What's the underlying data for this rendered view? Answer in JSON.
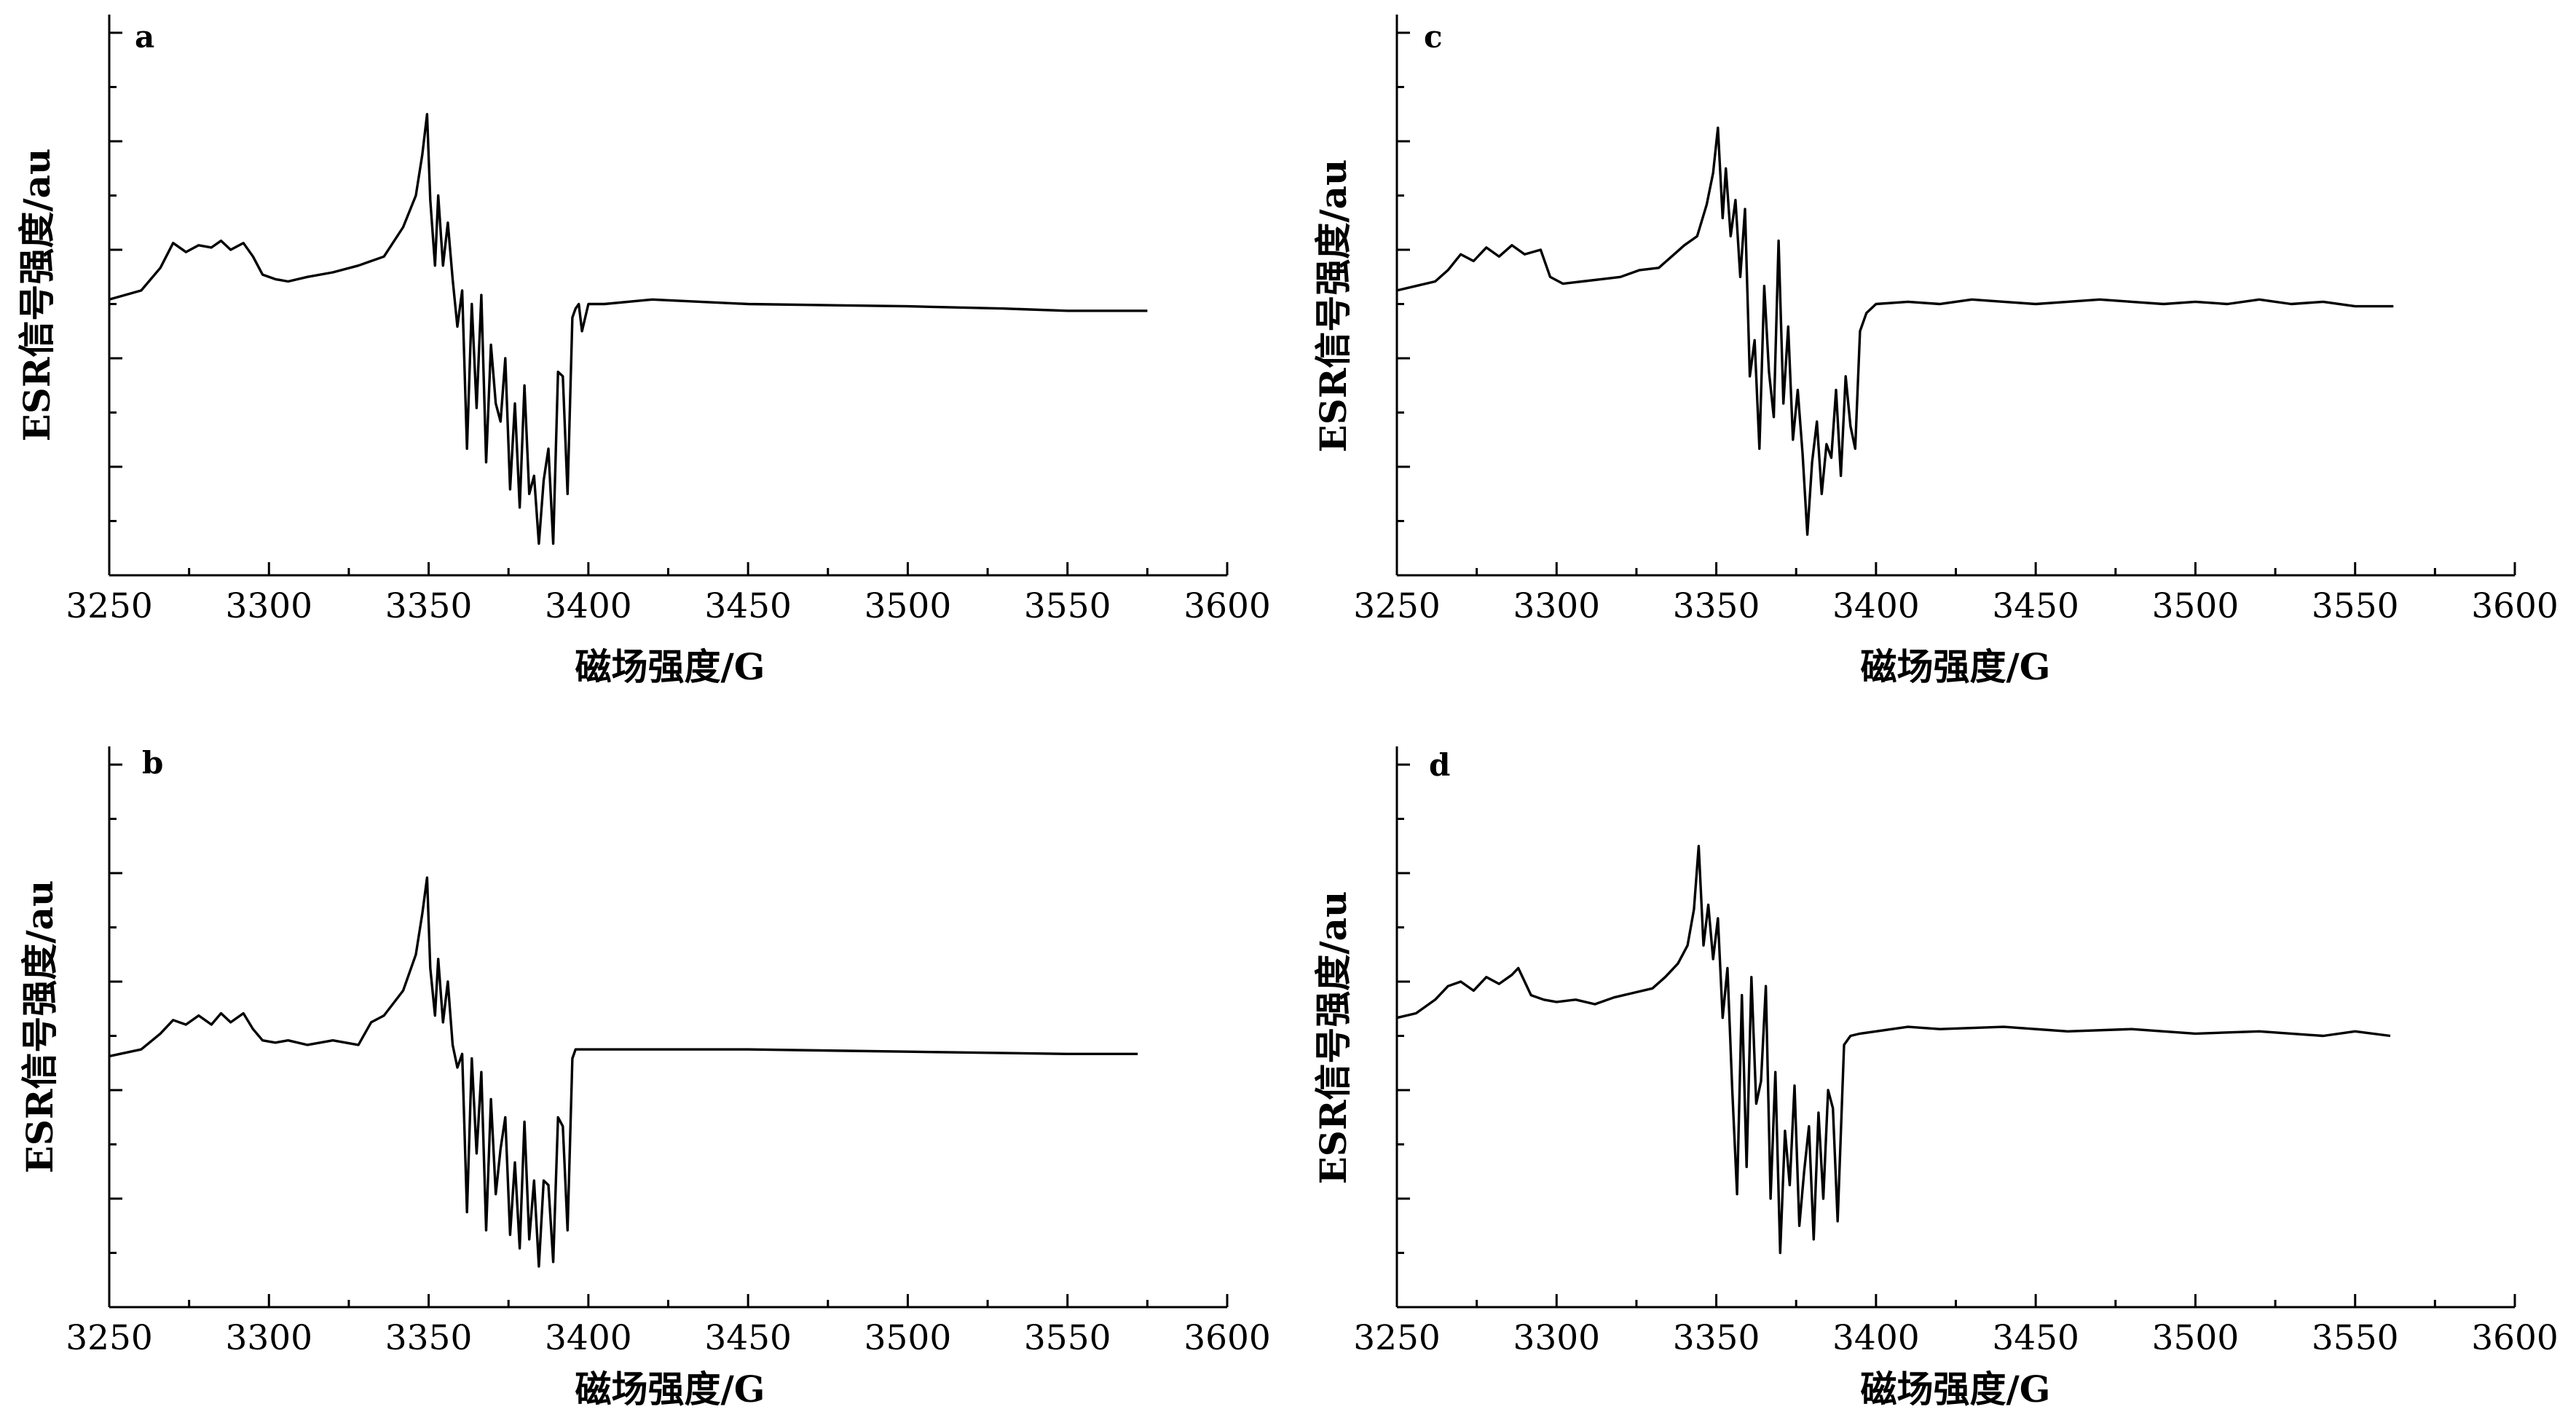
{
  "chart_data": [
    {
      "type": "line",
      "panel": "a",
      "xlabel": "磁场强度/G",
      "ylabel": "ESR信号强度/au",
      "xlim": [
        3250,
        3600
      ],
      "xticks": [
        "3250",
        "3300",
        "3350",
        "3400",
        "3450",
        "3500",
        "3550",
        "3600"
      ],
      "ylim": [
        -6,
        6
      ],
      "y_tick_labels": false,
      "grid": false,
      "series": [
        {
          "x": [
            3250,
            3260,
            3266,
            3270,
            3274,
            3278,
            3282,
            3285,
            3288,
            3292,
            3295,
            3298,
            3302,
            3306,
            3312,
            3320,
            3328,
            3336,
            3342,
            3346,
            3348,
            3349.5,
            3350.5,
            3352,
            3353,
            3354.5,
            3356,
            3357.5,
            3359,
            3360.5,
            3362,
            3363.5,
            3365,
            3366.5,
            3368,
            3369.5,
            3371,
            3372.5,
            3374,
            3375.5,
            3377,
            3378.5,
            3380,
            3381.5,
            3383,
            3384.5,
            3386,
            3387.5,
            3389,
            3390.5,
            3392,
            3393.5,
            3395,
            3396,
            3397,
            3398,
            3400,
            3405,
            3420,
            3450,
            3500,
            3530,
            3550,
            3575
          ],
          "y": [
            0.1,
            0.3,
            0.8,
            1.35,
            1.15,
            1.3,
            1.25,
            1.4,
            1.2,
            1.35,
            1.05,
            0.65,
            0.55,
            0.5,
            0.6,
            0.7,
            0.85,
            1.05,
            1.7,
            2.4,
            3.3,
            4.2,
            2.3,
            0.85,
            2.4,
            0.85,
            1.8,
            0.55,
            -0.5,
            0.3,
            -3.2,
            0.0,
            -2.3,
            0.2,
            -3.5,
            -0.9,
            -2.2,
            -2.6,
            -1.2,
            -4.1,
            -2.2,
            -4.5,
            -1.8,
            -4.2,
            -3.8,
            -5.3,
            -3.9,
            -3.2,
            -5.3,
            -1.5,
            -1.6,
            -4.2,
            -0.3,
            -0.1,
            0.0,
            -0.6,
            0.0,
            0.0,
            0.1,
            0.0,
            -0.05,
            -0.1,
            -0.15,
            -0.15
          ]
        }
      ]
    },
    {
      "type": "line",
      "panel": "b",
      "xlabel": "磁场强度/G",
      "ylabel": "ESR信号强度/au",
      "xlim": [
        3250,
        3600
      ],
      "xticks": [
        "3250",
        "3300",
        "3350",
        "3400",
        "3450",
        "3500",
        "3550",
        "3600"
      ],
      "ylim": [
        -6,
        6
      ],
      "y_tick_labels": false,
      "grid": false,
      "series": [
        {
          "x": [
            3250,
            3260,
            3266,
            3270,
            3274,
            3278,
            3282,
            3285,
            3288,
            3292,
            3295,
            3298,
            3302,
            3306,
            3312,
            3320,
            3328,
            3332,
            3336,
            3342,
            3346,
            3348,
            3349.5,
            3350.5,
            3352,
            3353,
            3354.5,
            3356,
            3357.5,
            3359,
            3360.5,
            3362,
            3363.5,
            3365,
            3366.5,
            3368,
            3369.5,
            3371,
            3372.5,
            3374,
            3375.5,
            3377,
            3378.5,
            3380,
            3381.5,
            3383,
            3384.5,
            3386,
            3387.5,
            3389,
            3390.5,
            3392,
            3393.5,
            3395,
            3396,
            3397,
            3400,
            3420,
            3450,
            3500,
            3550,
            3572
          ],
          "y": [
            -0.45,
            -0.3,
            0.05,
            0.35,
            0.25,
            0.45,
            0.25,
            0.5,
            0.3,
            0.5,
            0.15,
            -0.1,
            -0.15,
            -0.1,
            -0.2,
            -0.1,
            -0.2,
            0.3,
            0.45,
            1.0,
            1.8,
            2.7,
            3.5,
            1.5,
            0.45,
            1.7,
            0.3,
            1.2,
            -0.2,
            -0.7,
            -0.4,
            -3.9,
            -0.5,
            -2.6,
            -0.8,
            -4.3,
            -1.4,
            -3.5,
            -2.5,
            -1.8,
            -4.4,
            -2.8,
            -4.7,
            -1.9,
            -4.5,
            -3.2,
            -5.1,
            -3.2,
            -3.3,
            -5.0,
            -1.8,
            -2.0,
            -4.3,
            -0.5,
            -0.3,
            -0.3,
            -0.3,
            -0.3,
            -0.3,
            -0.35,
            -0.4,
            -0.4
          ]
        }
      ]
    },
    {
      "type": "line",
      "panel": "c",
      "xlabel": "磁场强度/G",
      "ylabel": "ESR信号强度/au",
      "xlim": [
        3250,
        3600
      ],
      "xticks": [
        "3250",
        "3300",
        "3350",
        "3400",
        "3450",
        "3500",
        "3550",
        "3600"
      ],
      "ylim": [
        -6,
        6
      ],
      "y_tick_labels": false,
      "grid": false,
      "series": [
        {
          "x": [
            3250,
            3256,
            3262,
            3266,
            3270,
            3274,
            3278,
            3282,
            3286,
            3290,
            3295,
            3298,
            3302,
            3308,
            3314,
            3320,
            3326,
            3332,
            3336,
            3340,
            3344,
            3347,
            3349,
            3350.5,
            3352,
            3353,
            3354.5,
            3356,
            3357.5,
            3359,
            3360.5,
            3362,
            3363.5,
            3365,
            3366.5,
            3368,
            3369.5,
            3371,
            3372.5,
            3374,
            3375.5,
            3377,
            3378.5,
            3380,
            3381.5,
            3383,
            3384.5,
            3386,
            3387.5,
            3389,
            3390.5,
            3392,
            3393.5,
            3395,
            3397,
            3400,
            3410,
            3420,
            3430,
            3440,
            3450,
            3460,
            3470,
            3480,
            3490,
            3500,
            3510,
            3520,
            3530,
            3540,
            3550,
            3562
          ],
          "y": [
            0.3,
            0.4,
            0.5,
            0.75,
            1.1,
            0.95,
            1.25,
            1.05,
            1.3,
            1.1,
            1.2,
            0.6,
            0.45,
            0.5,
            0.55,
            0.6,
            0.75,
            0.8,
            1.05,
            1.3,
            1.5,
            2.2,
            2.9,
            3.9,
            1.9,
            3.0,
            1.5,
            2.3,
            0.6,
            2.1,
            -1.6,
            -0.8,
            -3.2,
            0.4,
            -1.5,
            -2.5,
            1.4,
            -2.2,
            -0.5,
            -3.0,
            -1.9,
            -3.3,
            -5.1,
            -3.5,
            -2.6,
            -4.2,
            -3.1,
            -3.4,
            -1.9,
            -3.8,
            -1.6,
            -2.7,
            -3.2,
            -0.6,
            -0.2,
            0.0,
            0.05,
            0.0,
            0.1,
            0.05,
            0.0,
            0.05,
            0.1,
            0.05,
            0.0,
            0.05,
            0.0,
            0.1,
            0.0,
            0.05,
            -0.05,
            -0.05
          ]
        }
      ]
    },
    {
      "type": "line",
      "panel": "d",
      "xlabel": "磁场强度/G",
      "ylabel": "ESR信号强度/au",
      "xlim": [
        3250,
        3600
      ],
      "xticks": [
        "3250",
        "3300",
        "3350",
        "3400",
        "3450",
        "3500",
        "3550",
        "3600"
      ],
      "ylim": [
        -6,
        6
      ],
      "y_tick_labels": false,
      "grid": false,
      "series": [
        {
          "x": [
            3250,
            3256,
            3262,
            3266,
            3270,
            3274,
            3278,
            3282,
            3286,
            3288,
            3292,
            3296,
            3300,
            3306,
            3312,
            3318,
            3324,
            3330,
            3334,
            3338,
            3341,
            3343,
            3344.5,
            3346,
            3347.5,
            3349,
            3350.5,
            3352,
            3353.5,
            3355,
            3356.5,
            3358,
            3359.5,
            3361,
            3362.5,
            3364,
            3365.5,
            3367,
            3368.5,
            3370,
            3371.5,
            3373,
            3374.5,
            3376,
            3377.5,
            3379,
            3380.5,
            3382,
            3383.5,
            3385,
            3386.5,
            3388,
            3390,
            3392,
            3395,
            3400,
            3410,
            3420,
            3440,
            3460,
            3480,
            3500,
            3520,
            3540,
            3550,
            3561
          ],
          "y": [
            0.4,
            0.5,
            0.8,
            1.1,
            1.2,
            1.0,
            1.3,
            1.15,
            1.35,
            1.5,
            0.9,
            0.8,
            0.75,
            0.8,
            0.7,
            0.85,
            0.95,
            1.05,
            1.3,
            1.6,
            2.0,
            2.8,
            4.2,
            2.0,
            2.9,
            1.7,
            2.6,
            0.4,
            1.5,
            -1.2,
            -3.5,
            0.9,
            -2.9,
            1.3,
            -1.5,
            -1.0,
            1.1,
            -3.6,
            -0.8,
            -4.8,
            -2.1,
            -3.3,
            -1.1,
            -4.2,
            -3.0,
            -2.0,
            -4.5,
            -1.7,
            -3.6,
            -1.2,
            -1.6,
            -4.1,
            -0.2,
            0.0,
            0.05,
            0.1,
            0.2,
            0.15,
            0.2,
            0.1,
            0.15,
            0.05,
            0.1,
            0.0,
            0.1,
            0.0
          ]
        }
      ]
    }
  ]
}
